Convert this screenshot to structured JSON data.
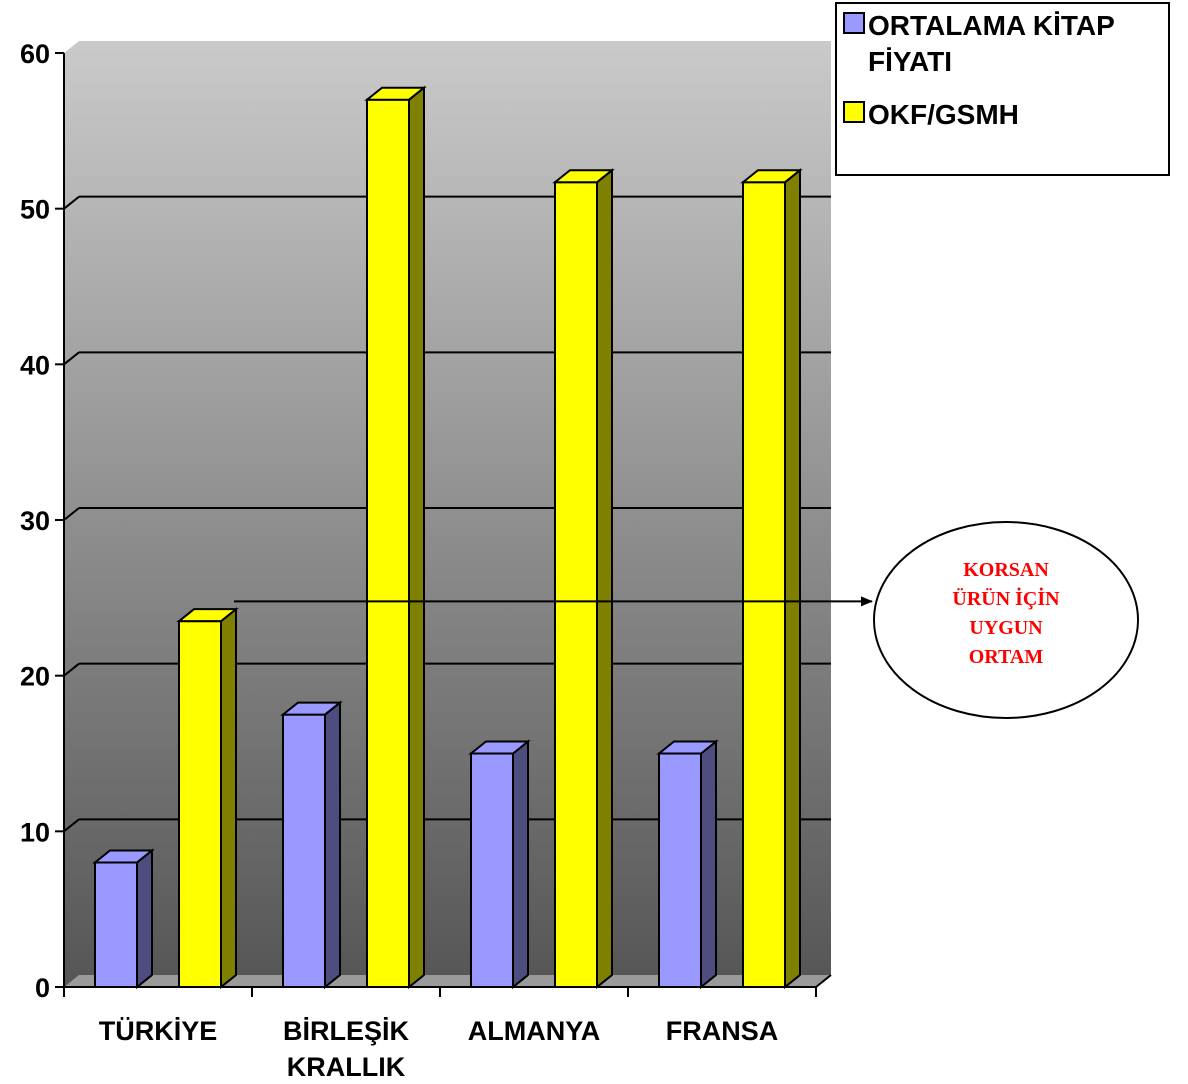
{
  "chart_data": {
    "type": "bar",
    "categories": [
      [
        "TÜRKİYE"
      ],
      [
        "BİRLEŞİK",
        "KRALLIK"
      ],
      [
        "ALMANYA"
      ],
      [
        "FRANSA"
      ]
    ],
    "series": [
      {
        "name": [
          "ORTALAMA KİTAP",
          "FİYATI"
        ],
        "values": [
          8,
          17.5,
          15,
          15
        ],
        "color": "#9999ff"
      },
      {
        "name": [
          "OKF/GSMH"
        ],
        "values": [
          23.5,
          57,
          51.7,
          51.7
        ],
        "color": "#ffff00"
      }
    ],
    "ylim": [
      0,
      60
    ],
    "yticks": [
      "0",
      "10",
      "20",
      "30",
      "40",
      "50",
      "60"
    ],
    "grid": true,
    "legend_position": "top-right",
    "annotation": {
      "lines": [
        "KORSAN",
        "ÜRÜN İÇİN",
        "UYGUN",
        "ORTAM"
      ],
      "color": "#ff0000",
      "points_to_value": 24
    }
  }
}
